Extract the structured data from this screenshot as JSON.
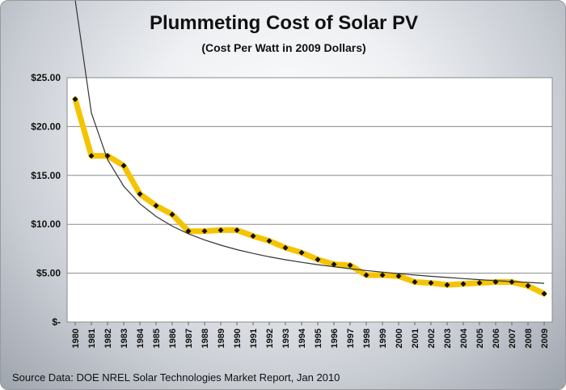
{
  "chart_data": {
    "type": "line",
    "title": "Plummeting Cost of Solar PV",
    "subtitle": "(Cost Per Watt in 2009 Dollars)",
    "xlabel": "",
    "ylabel": "",
    "x": [
      "1980",
      "1981",
      "1982",
      "1983",
      "1984",
      "1985",
      "1986",
      "1987",
      "1988",
      "1989",
      "1990",
      "1991",
      "1992",
      "1993",
      "1994",
      "1995",
      "1996",
      "1997",
      "1998",
      "1999",
      "2000",
      "2001",
      "2002",
      "2003",
      "2004",
      "2005",
      "2006",
      "2007",
      "2008",
      "2009"
    ],
    "series": [
      {
        "values": [
          22.8,
          17.0,
          17.0,
          16.0,
          13.1,
          11.9,
          11.0,
          9.3,
          9.3,
          9.4,
          9.4,
          8.8,
          8.3,
          7.6,
          7.1,
          6.4,
          5.9,
          5.8,
          4.8,
          4.8,
          4.7,
          4.1,
          4.0,
          3.8,
          3.9,
          4.0,
          4.1,
          4.1,
          3.7,
          2.9
        ]
      }
    ],
    "trendline": true,
    "ylim": [
      0,
      25
    ],
    "yticks": [
      0,
      5,
      10,
      15,
      20,
      25
    ],
    "ytick_labels": [
      "$-",
      "$5.00",
      "$10.00",
      "$15.00",
      "$20.00",
      "$25.00"
    ],
    "grid": true,
    "legend": "none",
    "colors": {
      "series_line": "#f5c400",
      "marker": "#111111",
      "trend_line": "#333333",
      "grid": "#8a8a8a",
      "plot_bg": "#ffffff"
    }
  },
  "source_note": "Source Data:  DOE NREL Solar Technologies  Market Report, Jan 2010"
}
